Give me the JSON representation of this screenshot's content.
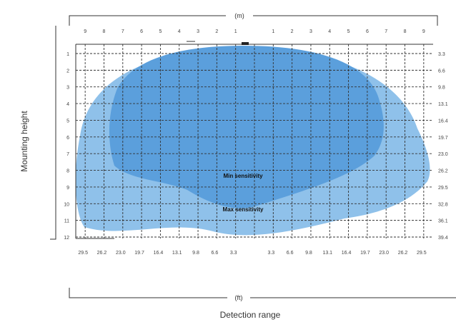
{
  "top_unit": "(m)",
  "bottom_unit": "(ft)",
  "x_axis_title": "Detection range",
  "y_axis_title": "Mounting height",
  "top_ticks": [
    "9",
    "8",
    "7",
    "6",
    "5",
    "4",
    "3",
    "2",
    "1",
    "",
    "1",
    "2",
    "3",
    "4",
    "5",
    "6",
    "7",
    "8",
    "9"
  ],
  "bottom_ticks": [
    "29.5",
    "26.2",
    "23.0",
    "19.7",
    "16.4",
    "13.1",
    "9.8",
    "6.6",
    "3.3",
    "",
    "3.3",
    "6.6",
    "9.8",
    "13.1",
    "16.4",
    "19.7",
    "23.0",
    "26.2",
    "29.5"
  ],
  "left_ticks": [
    "1",
    "2",
    "3",
    "4",
    "5",
    "6",
    "7",
    "8",
    "9",
    "10",
    "11",
    "12"
  ],
  "right_ticks": [
    "3.3",
    "6.6",
    "9.8",
    "13.1",
    "16.4",
    "19.7",
    "23.0",
    "26.2",
    "29.5",
    "32.8",
    "36.1",
    "39.4"
  ],
  "zones": {
    "max": {
      "label": "Max sensitivity",
      "color": "#8fc1ea"
    },
    "min": {
      "label": "Min sensitivity",
      "color": "#5b9fdc"
    }
  }
}
